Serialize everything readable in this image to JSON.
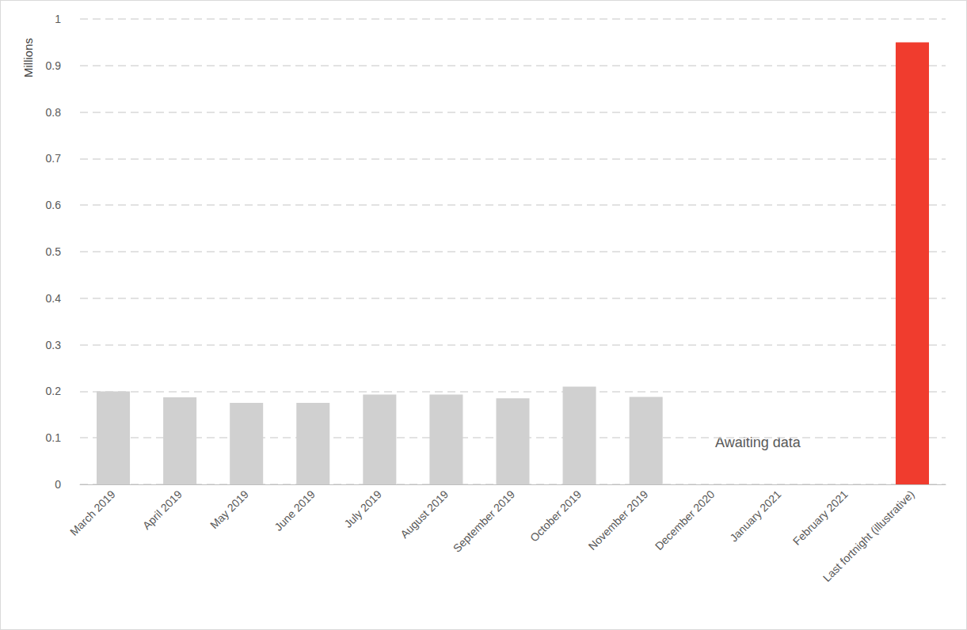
{
  "chart_data": {
    "type": "bar",
    "y_label": "Millions",
    "annotation": "Awaiting data",
    "categories": [
      "March 2019",
      "April 2019",
      "May 2019",
      "June 2019",
      "July 2019",
      "August 2019",
      "September 2019",
      "October 2019",
      "November 2019",
      "December 2020",
      "January 2021",
      "February 2021",
      "Last fortnight (illustrative)"
    ],
    "values": [
      0.2,
      0.187,
      0.175,
      0.175,
      0.193,
      0.193,
      0.185,
      0.21,
      0.188,
      null,
      null,
      null,
      0.95
    ],
    "colors": [
      "#d0d0d0",
      "#d0d0d0",
      "#d0d0d0",
      "#d0d0d0",
      "#d0d0d0",
      "#d0d0d0",
      "#d0d0d0",
      "#d0d0d0",
      "#d0d0d0",
      "#d0d0d0",
      "#d0d0d0",
      "#d0d0d0",
      "#f03c2e"
    ],
    "ylim": [
      0,
      1
    ],
    "yticks": [
      0,
      0.1,
      0.2,
      0.3,
      0.4,
      0.5,
      0.6,
      0.7,
      0.8,
      0.9,
      1
    ],
    "grid": true
  }
}
